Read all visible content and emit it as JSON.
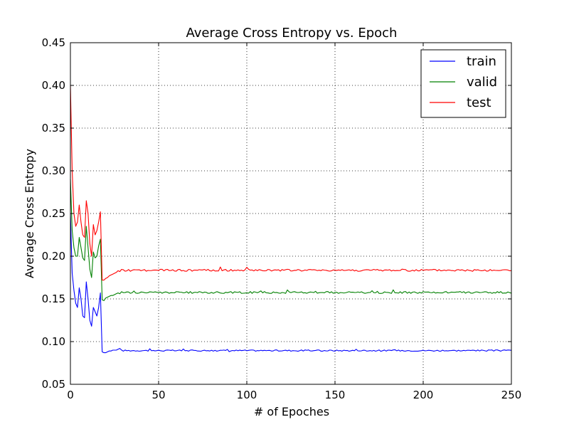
{
  "chart_data": {
    "type": "line",
    "title": "Average Cross Entropy vs. Epoch",
    "xlabel": "# of Epoches",
    "ylabel": "Average Cross Entropy",
    "xlim": [
      0,
      250
    ],
    "ylim": [
      0.05,
      0.45
    ],
    "xticks": [
      0,
      50,
      100,
      150,
      200,
      250
    ],
    "xtick_labels": [
      "0",
      "50",
      "100",
      "150",
      "200",
      "250"
    ],
    "yticks": [
      0.05,
      0.1,
      0.15,
      0.2,
      0.25,
      0.3,
      0.35,
      0.4,
      0.45
    ],
    "ytick_labels": [
      "0.05",
      "0.10",
      "0.15",
      "0.20",
      "0.25",
      "0.30",
      "0.35",
      "0.40",
      "0.45"
    ],
    "grid": true,
    "legend_position": "top-right",
    "series": [
      {
        "name": "train",
        "color": "#0000ff",
        "early": [
          [
            0,
            0.25
          ],
          [
            1,
            0.18
          ],
          [
            2,
            0.16
          ],
          [
            3,
            0.145
          ],
          [
            4,
            0.14
          ],
          [
            5,
            0.163
          ],
          [
            6,
            0.15
          ],
          [
            7,
            0.13
          ],
          [
            8,
            0.128
          ],
          [
            9,
            0.17
          ],
          [
            10,
            0.15
          ],
          [
            11,
            0.125
          ],
          [
            12,
            0.118
          ],
          [
            13,
            0.14
          ],
          [
            14,
            0.135
          ],
          [
            15,
            0.13
          ],
          [
            16,
            0.14
          ],
          [
            17,
            0.157
          ],
          [
            18,
            0.088
          ],
          [
            19,
            0.087
          ],
          [
            20,
            0.087
          ],
          [
            21,
            0.088
          ],
          [
            22,
            0.089
          ],
          [
            23,
            0.089
          ],
          [
            24,
            0.09
          ],
          [
            25,
            0.09
          ],
          [
            26,
            0.09
          ],
          [
            27,
            0.091
          ],
          [
            28,
            0.092
          ]
        ],
        "plateau": 0.0895,
        "noise": 0.0008,
        "end": 250
      },
      {
        "name": "valid",
        "color": "#008000",
        "early": [
          [
            0,
            0.29
          ],
          [
            1,
            0.23
          ],
          [
            2,
            0.21
          ],
          [
            3,
            0.2
          ],
          [
            4,
            0.2
          ],
          [
            5,
            0.222
          ],
          [
            6,
            0.21
          ],
          [
            7,
            0.198
          ],
          [
            8,
            0.195
          ],
          [
            9,
            0.235
          ],
          [
            10,
            0.21
          ],
          [
            11,
            0.185
          ],
          [
            12,
            0.175
          ],
          [
            13,
            0.205
          ],
          [
            14,
            0.198
          ],
          [
            15,
            0.2
          ],
          [
            16,
            0.212
          ],
          [
            17,
            0.22
          ],
          [
            18,
            0.149
          ],
          [
            19,
            0.148
          ],
          [
            20,
            0.151
          ],
          [
            21,
            0.152
          ],
          [
            22,
            0.153
          ],
          [
            23,
            0.154
          ],
          [
            24,
            0.154
          ],
          [
            25,
            0.155
          ],
          [
            26,
            0.156
          ],
          [
            27,
            0.157
          ],
          [
            28,
            0.156
          ]
        ],
        "plateau": 0.1575,
        "noise": 0.0011,
        "end": 250
      },
      {
        "name": "test",
        "color": "#ff0000",
        "early": [
          [
            0,
            0.4
          ],
          [
            1,
            0.3
          ],
          [
            2,
            0.25
          ],
          [
            3,
            0.235
          ],
          [
            4,
            0.24
          ],
          [
            5,
            0.26
          ],
          [
            6,
            0.24
          ],
          [
            7,
            0.225
          ],
          [
            8,
            0.222
          ],
          [
            9,
            0.265
          ],
          [
            10,
            0.25
          ],
          [
            11,
            0.215
          ],
          [
            12,
            0.2
          ],
          [
            13,
            0.237
          ],
          [
            14,
            0.225
          ],
          [
            15,
            0.23
          ],
          [
            16,
            0.24
          ],
          [
            17,
            0.252
          ],
          [
            18,
            0.172
          ],
          [
            19,
            0.172
          ],
          [
            20,
            0.174
          ],
          [
            21,
            0.175
          ],
          [
            22,
            0.177
          ],
          [
            23,
            0.178
          ],
          [
            24,
            0.179
          ],
          [
            25,
            0.18
          ],
          [
            26,
            0.181
          ],
          [
            27,
            0.183
          ],
          [
            28,
            0.182
          ]
        ],
        "plateau": 0.1835,
        "noise": 0.0012,
        "end": 250
      }
    ]
  }
}
